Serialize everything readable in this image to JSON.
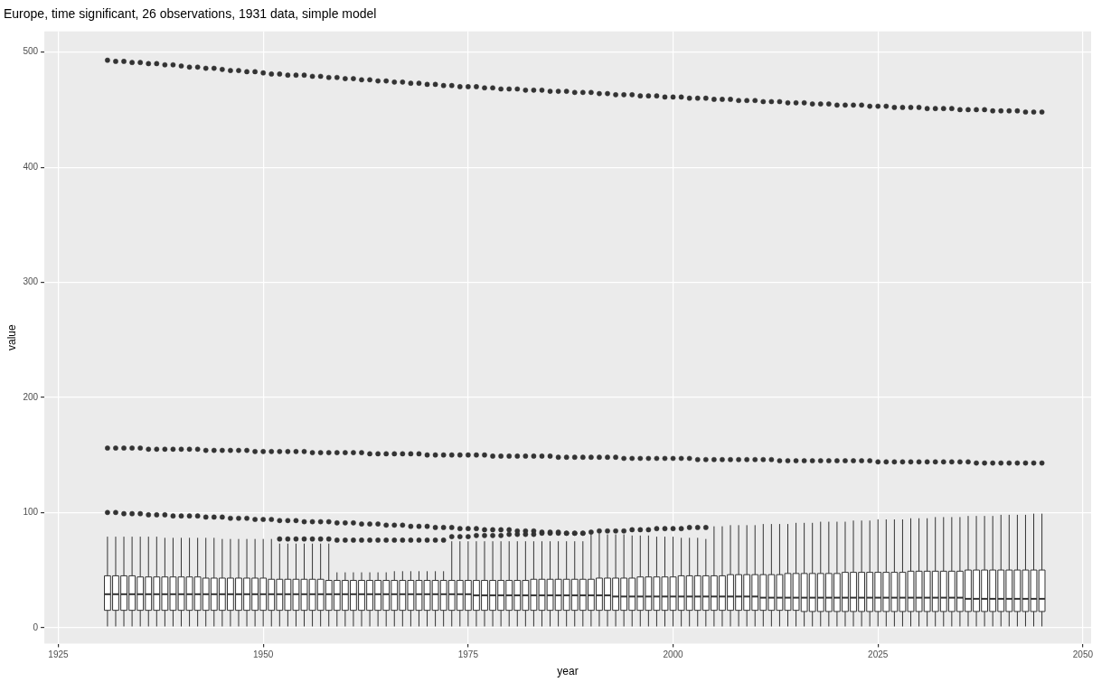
{
  "chart_data": {
    "type": "box",
    "title": "Europe, time significant, 26 observations, 1931 data, simple model",
    "xlabel": "year",
    "ylabel": "value",
    "color": "#ffffff",
    "grid": true,
    "xlim": [
      1923.3,
      2051
    ],
    "xticks": [
      1925,
      1950,
      1975,
      2000,
      2025,
      2050
    ],
    "ylim": [
      -14,
      518
    ],
    "yticks": [
      0,
      100,
      200,
      300,
      400,
      500
    ],
    "x": [
      1931,
      1932,
      1933,
      1934,
      1935,
      1936,
      1937,
      1938,
      1939,
      1940,
      1941,
      1942,
      1943,
      1944,
      1945,
      1946,
      1947,
      1948,
      1949,
      1950,
      1951,
      1952,
      1953,
      1954,
      1955,
      1956,
      1957,
      1958,
      1959,
      1960,
      1961,
      1962,
      1963,
      1964,
      1965,
      1966,
      1967,
      1968,
      1969,
      1970,
      1971,
      1972,
      1973,
      1974,
      1975,
      1976,
      1977,
      1978,
      1979,
      1980,
      1981,
      1982,
      1983,
      1984,
      1985,
      1986,
      1987,
      1988,
      1989,
      1990,
      1991,
      1992,
      1993,
      1994,
      1995,
      1996,
      1997,
      1998,
      1999,
      2000,
      2001,
      2002,
      2003,
      2004,
      2005,
      2006,
      2007,
      2008,
      2009,
      2010,
      2011,
      2012,
      2013,
      2014,
      2015,
      2016,
      2017,
      2018,
      2019,
      2020,
      2021,
      2022,
      2023,
      2024,
      2025,
      2026,
      2027,
      2028,
      2029,
      2030,
      2031,
      2032,
      2033,
      2034,
      2035,
      2036,
      2037,
      2038,
      2039,
      2040,
      2041,
      2042,
      2043,
      2044,
      2045
    ],
    "boxes": [
      {
        "low": 1,
        "q1": 15,
        "median": 29,
        "q3": 45,
        "high": 79,
        "outliers": [
          100,
          156,
          493
        ]
      },
      {
        "low": 1,
        "q1": 15,
        "median": 29,
        "q3": 45,
        "high": 79,
        "outliers": [
          100,
          156,
          492
        ]
      },
      {
        "low": 1,
        "q1": 15,
        "median": 29,
        "q3": 45,
        "high": 79,
        "outliers": [
          99,
          156,
          492
        ]
      },
      {
        "low": 1,
        "q1": 15,
        "median": 29,
        "q3": 45,
        "high": 79,
        "outliers": [
          99,
          156,
          491
        ]
      },
      {
        "low": 1,
        "q1": 15,
        "median": 29,
        "q3": 44,
        "high": 79,
        "outliers": [
          99,
          156,
          491
        ]
      },
      {
        "low": 1,
        "q1": 15,
        "median": 29,
        "q3": 44,
        "high": 79,
        "outliers": [
          98,
          155,
          490
        ]
      },
      {
        "low": 1,
        "q1": 15,
        "median": 29,
        "q3": 44,
        "high": 79,
        "outliers": [
          98,
          155,
          490
        ]
      },
      {
        "low": 1,
        "q1": 15,
        "median": 29,
        "q3": 44,
        "high": 78,
        "outliers": [
          98,
          155,
          489
        ]
      },
      {
        "low": 1,
        "q1": 15,
        "median": 29,
        "q3": 44,
        "high": 78,
        "outliers": [
          97,
          155,
          489
        ]
      },
      {
        "low": 1,
        "q1": 15,
        "median": 29,
        "q3": 44,
        "high": 78,
        "outliers": [
          97,
          155,
          488
        ]
      },
      {
        "low": 1,
        "q1": 15,
        "median": 29,
        "q3": 44,
        "high": 78,
        "outliers": [
          97,
          155,
          487
        ]
      },
      {
        "low": 1,
        "q1": 15,
        "median": 29,
        "q3": 44,
        "high": 78,
        "outliers": [
          97,
          155,
          487
        ]
      },
      {
        "low": 1,
        "q1": 15,
        "median": 29,
        "q3": 43,
        "high": 78,
        "outliers": [
          96,
          154,
          486
        ]
      },
      {
        "low": 1,
        "q1": 15,
        "median": 29,
        "q3": 43,
        "high": 78,
        "outliers": [
          96,
          154,
          486
        ]
      },
      {
        "low": 1,
        "q1": 15,
        "median": 29,
        "q3": 43,
        "high": 77,
        "outliers": [
          96,
          154,
          485
        ]
      },
      {
        "low": 1,
        "q1": 15,
        "median": 29,
        "q3": 43,
        "high": 77,
        "outliers": [
          95,
          154,
          484
        ]
      },
      {
        "low": 1,
        "q1": 15,
        "median": 29,
        "q3": 43,
        "high": 77,
        "outliers": [
          95,
          154,
          484
        ]
      },
      {
        "low": 1,
        "q1": 15,
        "median": 29,
        "q3": 43,
        "high": 77,
        "outliers": [
          95,
          154,
          483
        ]
      },
      {
        "low": 1,
        "q1": 15,
        "median": 29,
        "q3": 43,
        "high": 77,
        "outliers": [
          94,
          153,
          483
        ]
      },
      {
        "low": 1,
        "q1": 15,
        "median": 29,
        "q3": 43,
        "high": 77,
        "outliers": [
          94,
          153,
          482
        ]
      },
      {
        "low": 1,
        "q1": 15,
        "median": 29,
        "q3": 42,
        "high": 77,
        "outliers": [
          94,
          153,
          481
        ]
      },
      {
        "low": 1,
        "q1": 15,
        "median": 29,
        "q3": 42,
        "high": 73,
        "outliers": [
          77,
          93,
          153,
          481
        ]
      },
      {
        "low": 1,
        "q1": 15,
        "median": 29,
        "q3": 42,
        "high": 73,
        "outliers": [
          77,
          93,
          153,
          480
        ]
      },
      {
        "low": 1,
        "q1": 15,
        "median": 29,
        "q3": 42,
        "high": 73,
        "outliers": [
          77,
          93,
          153,
          480
        ]
      },
      {
        "low": 1,
        "q1": 15,
        "median": 29,
        "q3": 42,
        "high": 73,
        "outliers": [
          77,
          92,
          153,
          480
        ]
      },
      {
        "low": 1,
        "q1": 15,
        "median": 29,
        "q3": 42,
        "high": 73,
        "outliers": [
          77,
          92,
          152,
          479
        ]
      },
      {
        "low": 1,
        "q1": 15,
        "median": 29,
        "q3": 42,
        "high": 73,
        "outliers": [
          77,
          92,
          152,
          479
        ]
      },
      {
        "low": 1,
        "q1": 15,
        "median": 29,
        "q3": 41,
        "high": 73,
        "outliers": [
          77,
          92,
          152,
          478
        ]
      },
      {
        "low": 1,
        "q1": 15,
        "median": 29,
        "q3": 41,
        "high": 48,
        "outliers": [
          76,
          91,
          152,
          478
        ]
      },
      {
        "low": 1,
        "q1": 15,
        "median": 29,
        "q3": 41,
        "high": 48,
        "outliers": [
          76,
          91,
          152,
          477
        ]
      },
      {
        "low": 1,
        "q1": 15,
        "median": 29,
        "q3": 41,
        "high": 48,
        "outliers": [
          76,
          91,
          152,
          477
        ]
      },
      {
        "low": 1,
        "q1": 15,
        "median": 29,
        "q3": 41,
        "high": 48,
        "outliers": [
          76,
          90,
          152,
          476
        ]
      },
      {
        "low": 1,
        "q1": 15,
        "median": 29,
        "q3": 41,
        "high": 48,
        "outliers": [
          76,
          90,
          151,
          476
        ]
      },
      {
        "low": 1,
        "q1": 15,
        "median": 29,
        "q3": 41,
        "high": 48,
        "outliers": [
          76,
          90,
          151,
          475
        ]
      },
      {
        "low": 1,
        "q1": 15,
        "median": 29,
        "q3": 41,
        "high": 48,
        "outliers": [
          76,
          89,
          151,
          475
        ]
      },
      {
        "low": 1,
        "q1": 15,
        "median": 29,
        "q3": 41,
        "high": 49,
        "outliers": [
          76,
          89,
          151,
          474
        ]
      },
      {
        "low": 1,
        "q1": 15,
        "median": 29,
        "q3": 41,
        "high": 49,
        "outliers": [
          76,
          89,
          151,
          474
        ]
      },
      {
        "low": 1,
        "q1": 15,
        "median": 29,
        "q3": 41,
        "high": 49,
        "outliers": [
          76,
          88,
          151,
          473
        ]
      },
      {
        "low": 1,
        "q1": 15,
        "median": 29,
        "q3": 41,
        "high": 49,
        "outliers": [
          76,
          88,
          151,
          473
        ]
      },
      {
        "low": 1,
        "q1": 15,
        "median": 29,
        "q3": 41,
        "high": 49,
        "outliers": [
          76,
          88,
          150,
          472
        ]
      },
      {
        "low": 1,
        "q1": 15,
        "median": 29,
        "q3": 41,
        "high": 49,
        "outliers": [
          76,
          87,
          150,
          472
        ]
      },
      {
        "low": 1,
        "q1": 15,
        "median": 29,
        "q3": 41,
        "high": 49,
        "outliers": [
          76,
          87,
          150,
          471
        ]
      },
      {
        "low": 1,
        "q1": 15,
        "median": 29,
        "q3": 41,
        "high": 75,
        "outliers": [
          79,
          87,
          150,
          471
        ]
      },
      {
        "low": 1,
        "q1": 15,
        "median": 29,
        "q3": 41,
        "high": 75,
        "outliers": [
          79,
          86,
          150,
          470
        ]
      },
      {
        "low": 1,
        "q1": 15,
        "median": 29,
        "q3": 41,
        "high": 75,
        "outliers": [
          79,
          86,
          150,
          470
        ]
      },
      {
        "low": 1,
        "q1": 15,
        "median": 28,
        "q3": 41,
        "high": 75,
        "outliers": [
          80,
          86,
          150,
          470
        ]
      },
      {
        "low": 1,
        "q1": 15,
        "median": 28,
        "q3": 41,
        "high": 75,
        "outliers": [
          80,
          85,
          150,
          469
        ]
      },
      {
        "low": 1,
        "q1": 15,
        "median": 28,
        "q3": 41,
        "high": 75,
        "outliers": [
          80,
          85,
          149,
          469
        ]
      },
      {
        "low": 1,
        "q1": 15,
        "median": 28,
        "q3": 41,
        "high": 75,
        "outliers": [
          80,
          85,
          149,
          468
        ]
      },
      {
        "low": 1,
        "q1": 15,
        "median": 28,
        "q3": 41,
        "high": 75,
        "outliers": [
          81,
          85,
          149,
          468
        ]
      },
      {
        "low": 1,
        "q1": 15,
        "median": 28,
        "q3": 41,
        "high": 75,
        "outliers": [
          81,
          84,
          149,
          468
        ]
      },
      {
        "low": 1,
        "q1": 15,
        "median": 28,
        "q3": 41,
        "high": 75,
        "outliers": [
          81,
          84,
          149,
          467
        ]
      },
      {
        "low": 1,
        "q1": 15,
        "median": 28,
        "q3": 42,
        "high": 75,
        "outliers": [
          81,
          84,
          149,
          467
        ]
      },
      {
        "low": 1,
        "q1": 15,
        "median": 28,
        "q3": 42,
        "high": 75,
        "outliers": [
          82,
          83,
          149,
          467
        ]
      },
      {
        "low": 1,
        "q1": 15,
        "median": 28,
        "q3": 42,
        "high": 75,
        "outliers": [
          82,
          83,
          149,
          466
        ]
      },
      {
        "low": 1,
        "q1": 15,
        "median": 28,
        "q3": 42,
        "high": 75,
        "outliers": [
          82,
          83,
          148,
          466
        ]
      },
      {
        "low": 1,
        "q1": 15,
        "median": 28,
        "q3": 42,
        "high": 75,
        "outliers": [
          82,
          82,
          148,
          466
        ]
      },
      {
        "low": 1,
        "q1": 15,
        "median": 28,
        "q3": 42,
        "high": 75,
        "outliers": [
          82,
          82,
          148,
          465
        ]
      },
      {
        "low": 1,
        "q1": 15,
        "median": 28,
        "q3": 42,
        "high": 75,
        "outliers": [
          82,
          82,
          148,
          465
        ]
      },
      {
        "low": 1,
        "q1": 15,
        "median": 28,
        "q3": 42,
        "high": 82,
        "outliers": [
          83,
          148,
          465
        ]
      },
      {
        "low": 1,
        "q1": 15,
        "median": 28,
        "q3": 43,
        "high": 82,
        "outliers": [
          84,
          148,
          464
        ]
      },
      {
        "low": 1,
        "q1": 15,
        "median": 28,
        "q3": 43,
        "high": 81,
        "outliers": [
          84,
          148,
          464
        ]
      },
      {
        "low": 1,
        "q1": 15,
        "median": 27,
        "q3": 43,
        "high": 81,
        "outliers": [
          84,
          148,
          463
        ]
      },
      {
        "low": 1,
        "q1": 15,
        "median": 27,
        "q3": 43,
        "high": 81,
        "outliers": [
          84,
          147,
          463
        ]
      },
      {
        "low": 1,
        "q1": 15,
        "median": 27,
        "q3": 43,
        "high": 80,
        "outliers": [
          85,
          147,
          463
        ]
      },
      {
        "low": 1,
        "q1": 15,
        "median": 27,
        "q3": 44,
        "high": 80,
        "outliers": [
          85,
          147,
          462
        ]
      },
      {
        "low": 1,
        "q1": 15,
        "median": 27,
        "q3": 44,
        "high": 80,
        "outliers": [
          85,
          147,
          462
        ]
      },
      {
        "low": 1,
        "q1": 15,
        "median": 27,
        "q3": 44,
        "high": 79,
        "outliers": [
          86,
          147,
          462
        ]
      },
      {
        "low": 1,
        "q1": 15,
        "median": 27,
        "q3": 44,
        "high": 79,
        "outliers": [
          86,
          147,
          461
        ]
      },
      {
        "low": 1,
        "q1": 15,
        "median": 27,
        "q3": 44,
        "high": 79,
        "outliers": [
          86,
          147,
          461
        ]
      },
      {
        "low": 1,
        "q1": 15,
        "median": 27,
        "q3": 45,
        "high": 78,
        "outliers": [
          86,
          147,
          461
        ]
      },
      {
        "low": 1,
        "q1": 15,
        "median": 27,
        "q3": 45,
        "high": 78,
        "outliers": [
          87,
          147,
          460
        ]
      },
      {
        "low": 1,
        "q1": 15,
        "median": 27,
        "q3": 45,
        "high": 78,
        "outliers": [
          87,
          146,
          460
        ]
      },
      {
        "low": 1,
        "q1": 15,
        "median": 27,
        "q3": 45,
        "high": 77,
        "outliers": [
          87,
          146,
          460
        ]
      },
      {
        "low": 1,
        "q1": 15,
        "median": 27,
        "q3": 45,
        "high": 88,
        "outliers": [
          146,
          459
        ]
      },
      {
        "low": 1,
        "q1": 15,
        "median": 27,
        "q3": 45,
        "high": 88,
        "outliers": [
          146,
          459
        ]
      },
      {
        "low": 1,
        "q1": 15,
        "median": 27,
        "q3": 46,
        "high": 89,
        "outliers": [
          146,
          459
        ]
      },
      {
        "low": 1,
        "q1": 15,
        "median": 27,
        "q3": 46,
        "high": 89,
        "outliers": [
          146,
          458
        ]
      },
      {
        "low": 1,
        "q1": 15,
        "median": 27,
        "q3": 46,
        "high": 89,
        "outliers": [
          146,
          458
        ]
      },
      {
        "low": 1,
        "q1": 15,
        "median": 27,
        "q3": 46,
        "high": 89,
        "outliers": [
          146,
          458
        ]
      },
      {
        "low": 1,
        "q1": 15,
        "median": 26,
        "q3": 46,
        "high": 90,
        "outliers": [
          146,
          457
        ]
      },
      {
        "low": 1,
        "q1": 15,
        "median": 26,
        "q3": 46,
        "high": 90,
        "outliers": [
          146,
          457
        ]
      },
      {
        "low": 1,
        "q1": 15,
        "median": 26,
        "q3": 46,
        "high": 90,
        "outliers": [
          145,
          457
        ]
      },
      {
        "low": 1,
        "q1": 15,
        "median": 26,
        "q3": 47,
        "high": 90,
        "outliers": [
          145,
          456
        ]
      },
      {
        "low": 1,
        "q1": 15,
        "median": 26,
        "q3": 47,
        "high": 91,
        "outliers": [
          145,
          456
        ]
      },
      {
        "low": 1,
        "q1": 14,
        "median": 26,
        "q3": 47,
        "high": 91,
        "outliers": [
          145,
          456
        ]
      },
      {
        "low": 1,
        "q1": 14,
        "median": 26,
        "q3": 47,
        "high": 91,
        "outliers": [
          145,
          455
        ]
      },
      {
        "low": 1,
        "q1": 14,
        "median": 26,
        "q3": 47,
        "high": 92,
        "outliers": [
          145,
          455
        ]
      },
      {
        "low": 1,
        "q1": 14,
        "median": 26,
        "q3": 47,
        "high": 92,
        "outliers": [
          145,
          455
        ]
      },
      {
        "low": 1,
        "q1": 14,
        "median": 26,
        "q3": 47,
        "high": 92,
        "outliers": [
          145,
          454
        ]
      },
      {
        "low": 1,
        "q1": 14,
        "median": 26,
        "q3": 48,
        "high": 92,
        "outliers": [
          145,
          454
        ]
      },
      {
        "low": 1,
        "q1": 14,
        "median": 26,
        "q3": 48,
        "high": 93,
        "outliers": [
          145,
          454
        ]
      },
      {
        "low": 1,
        "q1": 14,
        "median": 26,
        "q3": 48,
        "high": 93,
        "outliers": [
          145,
          454
        ]
      },
      {
        "low": 1,
        "q1": 14,
        "median": 26,
        "q3": 48,
        "high": 93,
        "outliers": [
          145,
          453
        ]
      },
      {
        "low": 1,
        "q1": 14,
        "median": 26,
        "q3": 48,
        "high": 94,
        "outliers": [
          144,
          453
        ]
      },
      {
        "low": 1,
        "q1": 14,
        "median": 26,
        "q3": 48,
        "high": 94,
        "outliers": [
          144,
          453
        ]
      },
      {
        "low": 1,
        "q1": 14,
        "median": 26,
        "q3": 48,
        "high": 94,
        "outliers": [
          144,
          452
        ]
      },
      {
        "low": 1,
        "q1": 14,
        "median": 26,
        "q3": 48,
        "high": 94,
        "outliers": [
          144,
          452
        ]
      },
      {
        "low": 1,
        "q1": 14,
        "median": 26,
        "q3": 49,
        "high": 95,
        "outliers": [
          144,
          452
        ]
      },
      {
        "low": 1,
        "q1": 14,
        "median": 26,
        "q3": 49,
        "high": 95,
        "outliers": [
          144,
          452
        ]
      },
      {
        "low": 1,
        "q1": 14,
        "median": 26,
        "q3": 49,
        "high": 95,
        "outliers": [
          144,
          451
        ]
      },
      {
        "low": 1,
        "q1": 14,
        "median": 26,
        "q3": 49,
        "high": 96,
        "outliers": [
          144,
          451
        ]
      },
      {
        "low": 1,
        "q1": 14,
        "median": 26,
        "q3": 49,
        "high": 96,
        "outliers": [
          144,
          451
        ]
      },
      {
        "low": 1,
        "q1": 14,
        "median": 26,
        "q3": 49,
        "high": 96,
        "outliers": [
          144,
          451
        ]
      },
      {
        "low": 1,
        "q1": 14,
        "median": 26,
        "q3": 49,
        "high": 96,
        "outliers": [
          144,
          450
        ]
      },
      {
        "low": 1,
        "q1": 14,
        "median": 25,
        "q3": 50,
        "high": 97,
        "outliers": [
          144,
          450
        ]
      },
      {
        "low": 1,
        "q1": 14,
        "median": 25,
        "q3": 50,
        "high": 97,
        "outliers": [
          143,
          450
        ]
      },
      {
        "low": 1,
        "q1": 14,
        "median": 25,
        "q3": 50,
        "high": 97,
        "outliers": [
          143,
          450
        ]
      },
      {
        "low": 1,
        "q1": 14,
        "median": 25,
        "q3": 50,
        "high": 97,
        "outliers": [
          143,
          449
        ]
      },
      {
        "low": 1,
        "q1": 14,
        "median": 25,
        "q3": 50,
        "high": 98,
        "outliers": [
          143,
          449
        ]
      },
      {
        "low": 1,
        "q1": 14,
        "median": 25,
        "q3": 50,
        "high": 98,
        "outliers": [
          143,
          449
        ]
      },
      {
        "low": 1,
        "q1": 14,
        "median": 25,
        "q3": 50,
        "high": 98,
        "outliers": [
          143,
          449
        ]
      },
      {
        "low": 1,
        "q1": 14,
        "median": 25,
        "q3": 50,
        "high": 98,
        "outliers": [
          143,
          448
        ]
      },
      {
        "low": 1,
        "q1": 14,
        "median": 25,
        "q3": 50,
        "high": 99,
        "outliers": [
          143,
          448
        ]
      },
      {
        "low": 1,
        "q1": 14,
        "median": 25,
        "q3": 50,
        "high": 99,
        "outliers": [
          143,
          448
        ]
      }
    ]
  }
}
